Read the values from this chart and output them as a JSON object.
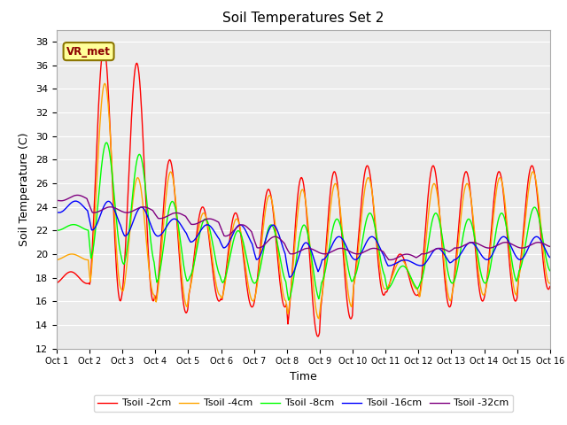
{
  "title": "Soil Temperatures Set 2",
  "xlabel": "Time",
  "ylabel": "Soil Temperature (C)",
  "ylim": [
    12,
    39
  ],
  "yticks": [
    12,
    14,
    16,
    18,
    20,
    22,
    24,
    26,
    28,
    30,
    32,
    34,
    36,
    38
  ],
  "x_labels": [
    "Oct 1",
    "Oct 2",
    "Oct 3",
    "Oct 4",
    "Oct 5",
    "Oct 6",
    "Oct 7",
    "Oct 8",
    "Oct 9",
    "Oct 10",
    "Oct 11",
    "Oct 12",
    "Oct 13",
    "Oct 14",
    "Oct 15",
    "Oct 16"
  ],
  "annotation_text": "VR_met",
  "series_colors": [
    "red",
    "orange",
    "lime",
    "blue",
    "purple"
  ],
  "series_labels": [
    "Tsoil -2cm",
    "Tsoil -4cm",
    "Tsoil -8cm",
    "Tsoil -16cm",
    "Tsoil -32cm"
  ],
  "bg_color": "#EBEBEB",
  "grid_color": "white"
}
